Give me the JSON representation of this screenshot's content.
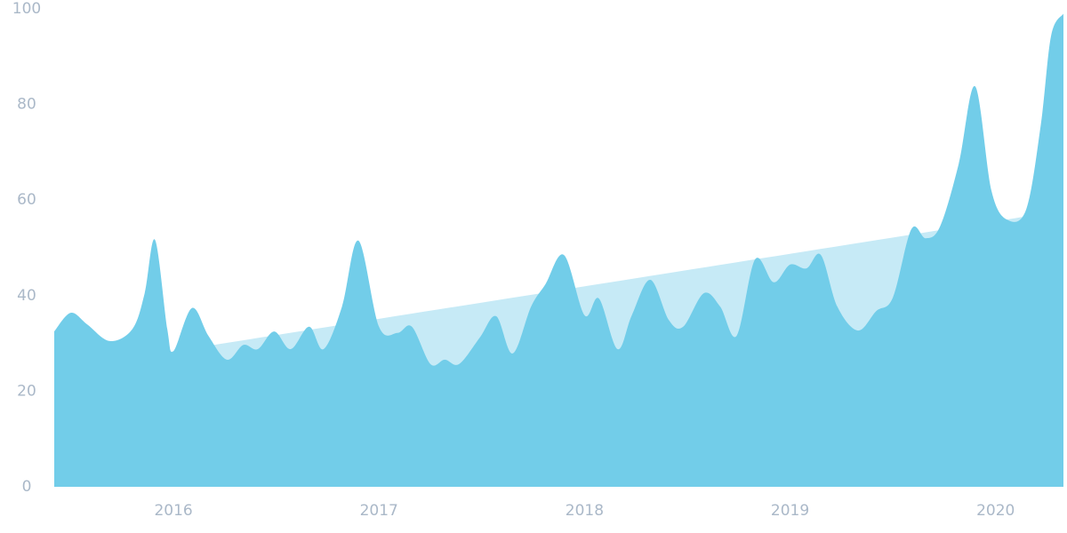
{
  "chart_data": {
    "type": "area",
    "xlim": [
      2015.42,
      2020.33
    ],
    "xticks": [
      2016,
      2017,
      2018,
      2019,
      2020
    ],
    "ylim": [
      0,
      100
    ],
    "yticks": [
      0,
      20,
      40,
      60,
      80,
      100
    ],
    "series": [
      {
        "color": "#c6eaf6",
        "x": [
          2015.42,
          2020.33
        ],
        "values": [
          24.4,
          57.8
        ]
      },
      {
        "color": "#72cde9",
        "x": [
          2015.42,
          2015.5,
          2015.58,
          2015.69,
          2015.8,
          2015.86,
          2015.91,
          2015.97,
          2016.0,
          2016.09,
          2016.17,
          2016.26,
          2016.34,
          2016.41,
          2016.49,
          2016.57,
          2016.66,
          2016.73,
          2016.82,
          2016.9,
          2017.0,
          2017.09,
          2017.16,
          2017.25,
          2017.32,
          2017.39,
          2017.49,
          2017.57,
          2017.65,
          2017.74,
          2017.81,
          2017.9,
          2018.0,
          2018.07,
          2018.16,
          2018.23,
          2018.32,
          2018.41,
          2018.48,
          2018.58,
          2018.66,
          2018.74,
          2018.83,
          2018.92,
          2019.0,
          2019.08,
          2019.15,
          2019.23,
          2019.33,
          2019.42,
          2019.5,
          2019.59,
          2019.66,
          2019.73,
          2019.82,
          2019.9,
          2019.98,
          2020.06,
          2020.15,
          2020.22,
          2020.27,
          2020.33
        ],
        "values": [
          32.5,
          36.4,
          34,
          30.5,
          33,
          40.5,
          51.7,
          33,
          28.4,
          37.4,
          31.6,
          26.6,
          29.7,
          28.8,
          32.5,
          28.8,
          33.5,
          28.8,
          37.7,
          51.5,
          33.5,
          32.2,
          33.5,
          25.7,
          26.6,
          25.7,
          31.2,
          35.7,
          27.9,
          37.7,
          42.4,
          48.5,
          35.9,
          39.4,
          28.8,
          35.9,
          43.3,
          34.9,
          33.5,
          40.5,
          37.7,
          31.6,
          47.6,
          42.8,
          46.5,
          45.7,
          48.5,
          37.7,
          32.7,
          36.8,
          39.6,
          53.9,
          52,
          54.5,
          67.5,
          83.8,
          61.9,
          55.8,
          58.2,
          75.8,
          94.4,
          99
        ]
      }
    ]
  }
}
